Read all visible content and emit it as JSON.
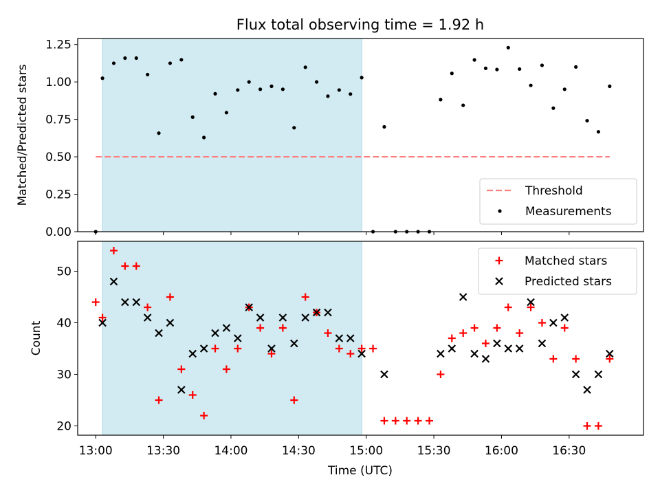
{
  "chart_data": {
    "title": "Flux total observing time = 1.92 h",
    "xlabel": "Time (UTC)",
    "x_ticks": [
      "13:00",
      "13:30",
      "14:00",
      "14:30",
      "15:00",
      "15:30",
      "16:00",
      "16:30"
    ],
    "x_range": [
      "12:52",
      "17:03"
    ],
    "highlight_span": [
      "13:03",
      "14:58"
    ],
    "highlight_color": "#add8e6",
    "panels": [
      {
        "type": "scatter",
        "ylabel": "Matched/Predicted stars",
        "ylim": [
          0,
          1.29
        ],
        "y_ticks": [
          "0.00",
          "0.25",
          "0.50",
          "0.75",
          "1.00",
          "1.25"
        ],
        "legend_position": "lower right",
        "threshold": {
          "name": "Threshold",
          "value": 0.5,
          "color": "#ff7f7f"
        },
        "series": [
          {
            "name": "Measurements",
            "color": "#000000",
            "points": [
              [
                "13:00",
                0.0
              ],
              [
                "13:03",
                1.025
              ],
              [
                "13:08",
                1.125
              ],
              [
                "13:13",
                1.159
              ],
              [
                "13:18",
                1.159
              ],
              [
                "13:23",
                1.049
              ],
              [
                "13:28",
                0.658
              ],
              [
                "13:33",
                1.125
              ],
              [
                "13:38",
                1.148
              ],
              [
                "13:43",
                0.765
              ],
              [
                "13:48",
                0.629
              ],
              [
                "13:53",
                0.921
              ],
              [
                "13:58",
                0.795
              ],
              [
                "14:03",
                0.946
              ],
              [
                "14:08",
                1.0
              ],
              [
                "14:13",
                0.951
              ],
              [
                "14:18",
                0.971
              ],
              [
                "14:23",
                0.951
              ],
              [
                "14:28",
                0.694
              ],
              [
                "14:33",
                1.098
              ],
              [
                "14:38",
                1.0
              ],
              [
                "14:43",
                0.905
              ],
              [
                "14:48",
                0.946
              ],
              [
                "14:53",
                0.919
              ],
              [
                "14:58",
                1.029
              ],
              [
                "15:03",
                0.0
              ],
              [
                "15:08",
                0.7
              ],
              [
                "15:13",
                0.0
              ],
              [
                "15:18",
                0.0
              ],
              [
                "15:23",
                0.0
              ],
              [
                "15:28",
                0.0
              ],
              [
                "15:33",
                0.882
              ],
              [
                "15:38",
                1.057
              ],
              [
                "15:43",
                0.844
              ],
              [
                "15:48",
                1.147
              ],
              [
                "15:53",
                1.091
              ],
              [
                "15:58",
                1.083
              ],
              [
                "16:03",
                1.229
              ],
              [
                "16:08",
                1.086
              ],
              [
                "16:13",
                0.977
              ],
              [
                "16:18",
                1.111
              ],
              [
                "16:23",
                0.825
              ],
              [
                "16:28",
                0.951
              ],
              [
                "16:33",
                1.1
              ],
              [
                "16:38",
                0.741
              ],
              [
                "16:43",
                0.667
              ],
              [
                "16:48",
                0.971
              ]
            ]
          }
        ]
      },
      {
        "type": "scatter",
        "ylabel": "Count",
        "ylim": [
          18.2,
          55.8
        ],
        "y_ticks": [
          "20",
          "30",
          "40",
          "50"
        ],
        "legend_position": "upper right",
        "series": [
          {
            "name": "Matched stars",
            "marker": "+",
            "color": "#ff0000",
            "points": [
              [
                "13:00",
                44
              ],
              [
                "13:03",
                41
              ],
              [
                "13:08",
                54
              ],
              [
                "13:13",
                51
              ],
              [
                "13:18",
                51
              ],
              [
                "13:23",
                43
              ],
              [
                "13:28",
                25
              ],
              [
                "13:33",
                45
              ],
              [
                "13:38",
                31
              ],
              [
                "13:43",
                26
              ],
              [
                "13:48",
                22
              ],
              [
                "13:53",
                35
              ],
              [
                "13:58",
                31
              ],
              [
                "14:03",
                35
              ],
              [
                "14:08",
                43
              ],
              [
                "14:13",
                39
              ],
              [
                "14:18",
                34
              ],
              [
                "14:23",
                39
              ],
              [
                "14:28",
                25
              ],
              [
                "14:33",
                45
              ],
              [
                "14:38",
                42
              ],
              [
                "14:43",
                38
              ],
              [
                "14:48",
                35
              ],
              [
                "14:53",
                34
              ],
              [
                "14:58",
                35
              ],
              [
                "15:03",
                35
              ],
              [
                "15:08",
                21
              ],
              [
                "15:13",
                21
              ],
              [
                "15:18",
                21
              ],
              [
                "15:23",
                21
              ],
              [
                "15:28",
                21
              ],
              [
                "15:33",
                30
              ],
              [
                "15:38",
                37
              ],
              [
                "15:43",
                38
              ],
              [
                "15:48",
                39
              ],
              [
                "15:53",
                36
              ],
              [
                "15:58",
                39
              ],
              [
                "16:03",
                43
              ],
              [
                "16:08",
                38
              ],
              [
                "16:13",
                43
              ],
              [
                "16:18",
                40
              ],
              [
                "16:23",
                33
              ],
              [
                "16:28",
                39
              ],
              [
                "16:33",
                33
              ],
              [
                "16:38",
                20
              ],
              [
                "16:43",
                20
              ],
              [
                "16:48",
                33
              ]
            ]
          },
          {
            "name": "Predicted stars",
            "marker": "x",
            "color": "#000000",
            "points": [
              [
                "13:03",
                40
              ],
              [
                "13:08",
                48
              ],
              [
                "13:13",
                44
              ],
              [
                "13:18",
                44
              ],
              [
                "13:23",
                41
              ],
              [
                "13:28",
                38
              ],
              [
                "13:33",
                40
              ],
              [
                "13:38",
                27
              ],
              [
                "13:43",
                34
              ],
              [
                "13:48",
                35
              ],
              [
                "13:53",
                38
              ],
              [
                "13:58",
                39
              ],
              [
                "14:03",
                37
              ],
              [
                "14:08",
                43
              ],
              [
                "14:13",
                41
              ],
              [
                "14:18",
                35
              ],
              [
                "14:23",
                41
              ],
              [
                "14:28",
                36
              ],
              [
                "14:33",
                41
              ],
              [
                "14:38",
                42
              ],
              [
                "14:43",
                42
              ],
              [
                "14:48",
                37
              ],
              [
                "14:53",
                37
              ],
              [
                "14:58",
                34
              ],
              [
                "15:08",
                30
              ],
              [
                "15:33",
                34
              ],
              [
                "15:38",
                35
              ],
              [
                "15:43",
                45
              ],
              [
                "15:48",
                34
              ],
              [
                "15:53",
                33
              ],
              [
                "15:58",
                36
              ],
              [
                "16:03",
                35
              ],
              [
                "16:08",
                35
              ],
              [
                "16:13",
                44
              ],
              [
                "16:18",
                36
              ],
              [
                "16:23",
                40
              ],
              [
                "16:28",
                41
              ],
              [
                "16:33",
                30
              ],
              [
                "16:38",
                27
              ],
              [
                "16:43",
                30
              ],
              [
                "16:48",
                34
              ]
            ]
          }
        ]
      }
    ]
  }
}
